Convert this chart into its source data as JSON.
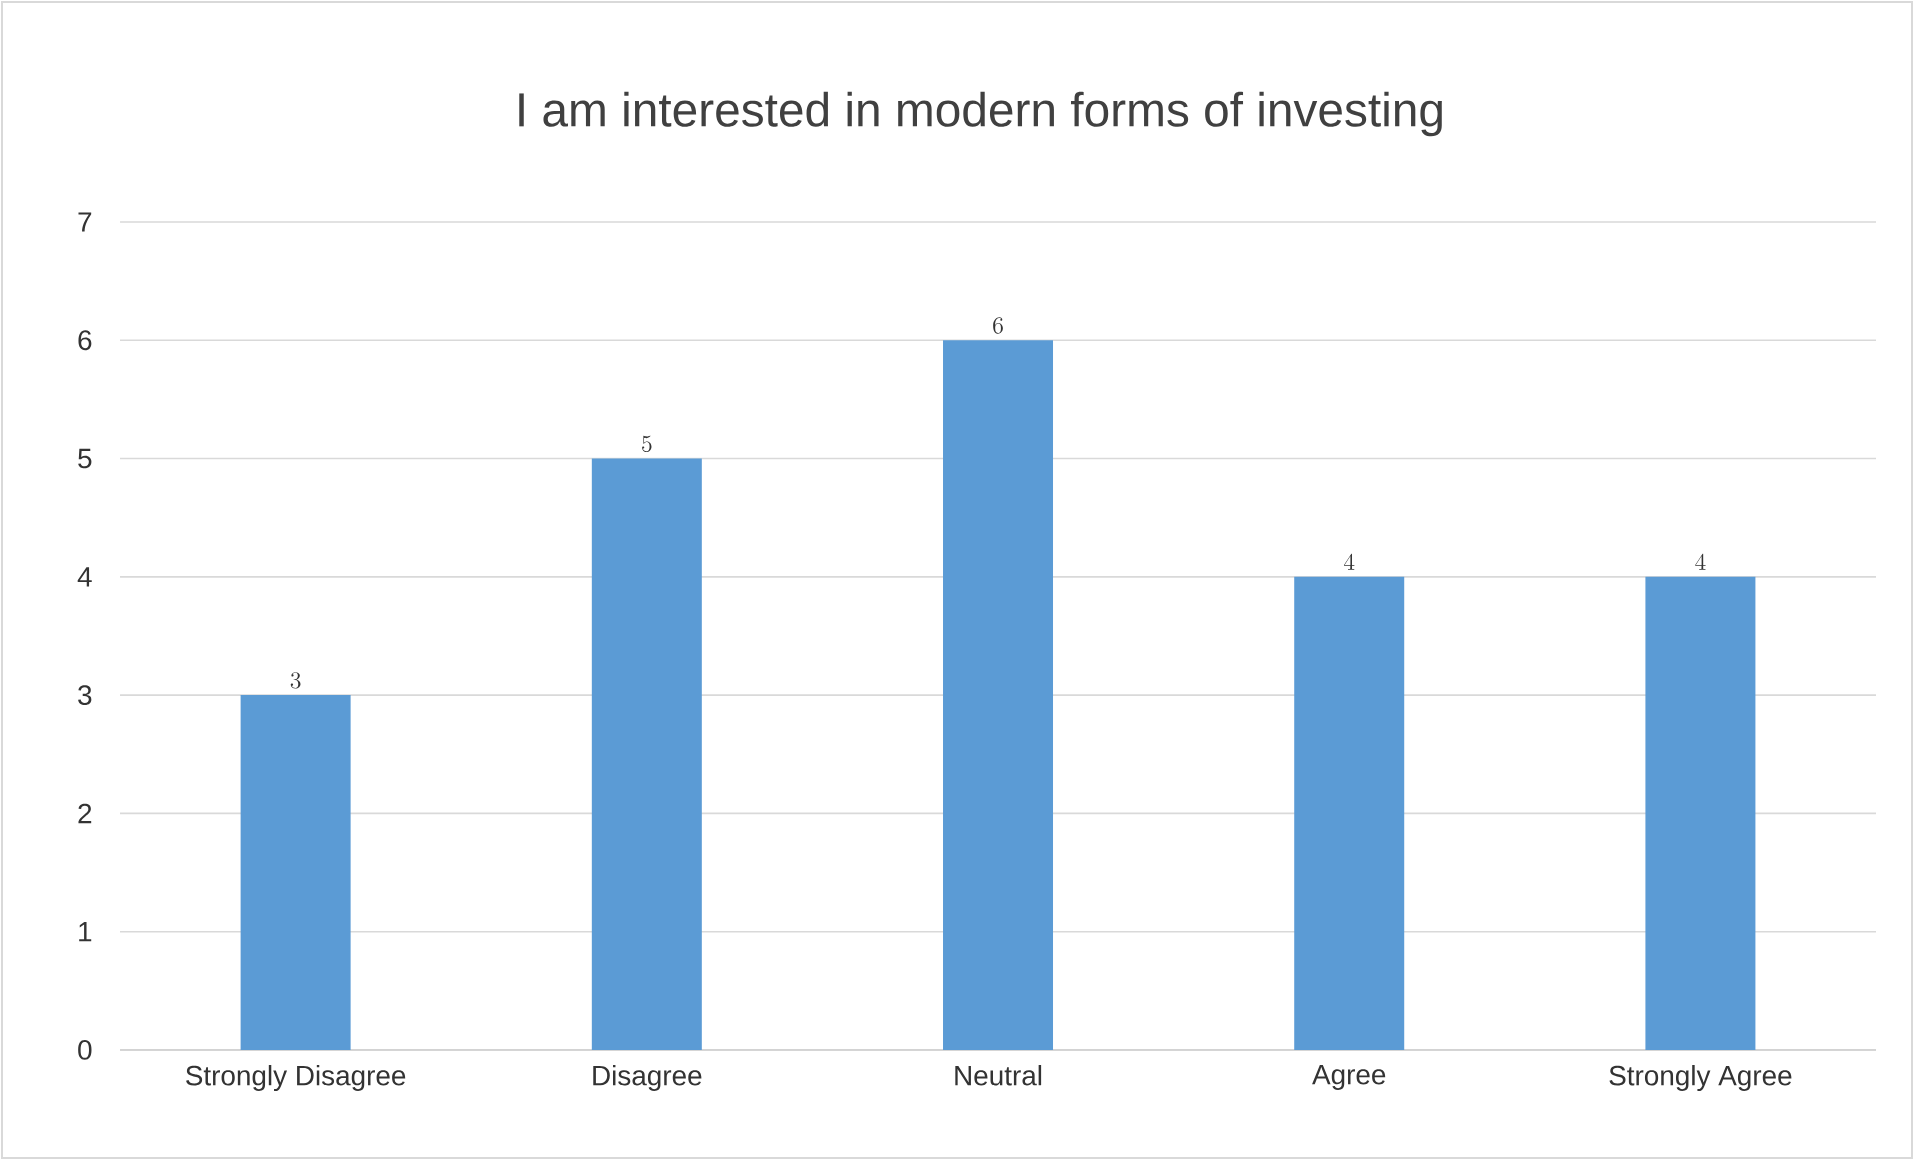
{
  "chart_data": {
    "type": "bar",
    "title": "I am interested in modern forms of investing",
    "categories": [
      "Strongly Disagree",
      "Disagree",
      "Neutral",
      "Agree",
      "Strongly Agree"
    ],
    "values": [
      3,
      5,
      6,
      4,
      4
    ],
    "color": "#5b9bd5",
    "ylim": [
      0,
      7
    ],
    "yticks": [
      0,
      1,
      2,
      3,
      4,
      5,
      6,
      7
    ],
    "grid": "y",
    "data_labels": true
  }
}
